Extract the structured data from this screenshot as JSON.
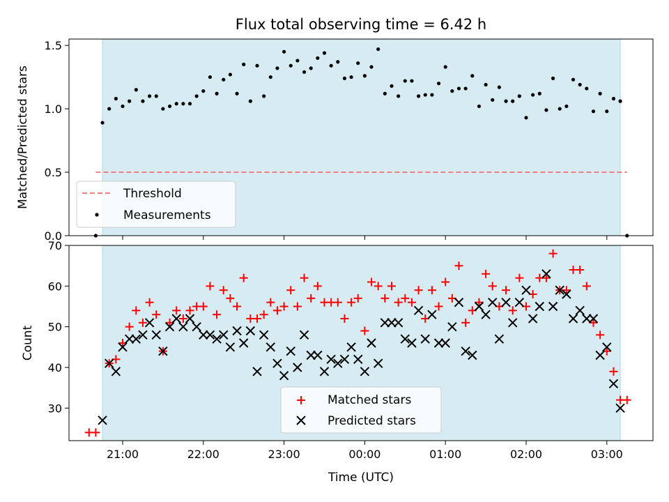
{
  "chart_data": [
    {
      "type": "scatter",
      "title": "Flux total observing time = 6.42 h",
      "ylabel": "Matched/Predicted stars",
      "ylim": [
        0,
        1.55
      ],
      "yticks": [
        "0.0",
        "0.5",
        "1.0",
        "1.5"
      ],
      "xticks": [
        "21:00",
        "22:00",
        "23:00",
        "00:00",
        "01:00",
        "02:00",
        "03:00"
      ],
      "shaded_span": [
        "20:45",
        "03:10"
      ],
      "shade_color": "#add8e6",
      "threshold": {
        "name": "Threshold",
        "value": 0.5,
        "color": "#f08080"
      },
      "series": [
        {
          "name": "Measurements",
          "marker": "dot",
          "color": "#000000",
          "x": [
            "20:40",
            "20:45",
            "20:50",
            "20:55",
            "21:00",
            "21:05",
            "21:10",
            "21:15",
            "21:20",
            "21:25",
            "21:30",
            "21:35",
            "21:40",
            "21:45",
            "21:50",
            "21:55",
            "22:00",
            "22:05",
            "22:10",
            "22:15",
            "22:20",
            "22:25",
            "22:30",
            "22:35",
            "22:40",
            "22:45",
            "22:50",
            "22:55",
            "23:00",
            "23:05",
            "23:10",
            "23:15",
            "23:20",
            "23:25",
            "23:30",
            "23:35",
            "23:40",
            "23:45",
            "23:50",
            "23:55",
            "00:00",
            "00:05",
            "00:10",
            "00:15",
            "00:20",
            "00:25",
            "00:30",
            "00:35",
            "00:40",
            "00:45",
            "00:50",
            "00:55",
            "01:00",
            "01:05",
            "01:10",
            "01:15",
            "01:20",
            "01:25",
            "01:30",
            "01:35",
            "01:40",
            "01:45",
            "01:50",
            "01:55",
            "02:00",
            "02:05",
            "02:10",
            "02:15",
            "02:20",
            "02:25",
            "02:30",
            "02:35",
            "02:40",
            "02:45",
            "02:50",
            "02:55",
            "03:00",
            "03:05",
            "03:10",
            "03:15"
          ],
          "y": [
            0.0,
            0.89,
            1.0,
            1.08,
            1.02,
            1.06,
            1.15,
            1.06,
            1.1,
            1.1,
            1.0,
            1.02,
            1.04,
            1.04,
            1.04,
            1.1,
            1.14,
            1.25,
            1.12,
            1.23,
            1.27,
            1.12,
            1.35,
            1.06,
            1.34,
            1.1,
            1.25,
            1.32,
            1.45,
            1.34,
            1.38,
            1.29,
            1.32,
            1.4,
            1.44,
            1.34,
            1.37,
            1.24,
            1.25,
            1.36,
            1.26,
            1.33,
            1.47,
            1.12,
            1.18,
            1.1,
            1.22,
            1.22,
            1.1,
            1.11,
            1.11,
            1.2,
            1.33,
            1.14,
            1.16,
            1.16,
            1.26,
            1.02,
            1.19,
            1.07,
            1.17,
            1.06,
            1.06,
            1.1,
            0.93,
            1.11,
            1.12,
            0.99,
            1.24,
            1.0,
            1.02,
            1.23,
            1.19,
            1.16,
            0.98,
            1.12,
            0.98,
            1.08,
            1.06,
            0.0
          ]
        }
      ],
      "legend": {
        "placement": "lower-left",
        "entries": [
          "Threshold",
          "Measurements"
        ]
      }
    },
    {
      "type": "scatter",
      "xlabel": "Time (UTC)",
      "ylabel": "Count",
      "ylim": [
        22,
        70
      ],
      "yticks": [
        "30",
        "40",
        "50",
        "60",
        "70"
      ],
      "xticks": [
        "21:00",
        "22:00",
        "23:00",
        "00:00",
        "01:00",
        "02:00",
        "03:00"
      ],
      "shaded_span": [
        "20:45",
        "03:10"
      ],
      "shade_color": "#add8e6",
      "series": [
        {
          "name": "Matched stars",
          "marker": "plus",
          "color": "#ff0000",
          "x": [
            "20:35",
            "20:40",
            "20:50",
            "20:55",
            "21:00",
            "21:05",
            "21:10",
            "21:15",
            "21:20",
            "21:25",
            "21:30",
            "21:35",
            "21:40",
            "21:45",
            "21:50",
            "21:55",
            "22:00",
            "22:05",
            "22:10",
            "22:15",
            "22:20",
            "22:25",
            "22:30",
            "22:35",
            "22:40",
            "22:45",
            "22:50",
            "22:55",
            "23:00",
            "23:05",
            "23:10",
            "23:15",
            "23:20",
            "23:25",
            "23:30",
            "23:35",
            "23:40",
            "23:45",
            "23:50",
            "23:55",
            "00:00",
            "00:05",
            "00:10",
            "00:15",
            "00:20",
            "00:25",
            "00:30",
            "00:35",
            "00:40",
            "00:45",
            "00:50",
            "00:55",
            "01:00",
            "01:05",
            "01:10",
            "01:15",
            "01:20",
            "01:25",
            "01:30",
            "01:35",
            "01:40",
            "01:45",
            "01:50",
            "01:55",
            "02:00",
            "02:05",
            "02:10",
            "02:15",
            "02:20",
            "02:25",
            "02:30",
            "02:35",
            "02:40",
            "02:45",
            "02:50",
            "02:55",
            "03:00",
            "03:05",
            "03:10",
            "03:15"
          ],
          "y": [
            24,
            24,
            41,
            42,
            46,
            50,
            54,
            51,
            56,
            53,
            44,
            51,
            54,
            52,
            54,
            55,
            55,
            60,
            53,
            59,
            57,
            55,
            62,
            52,
            52,
            53,
            56,
            54,
            55,
            59,
            55,
            62,
            57,
            60,
            56,
            56,
            56,
            52,
            56,
            57,
            49,
            61,
            60,
            57,
            60,
            56,
            57,
            56,
            59,
            52,
            59,
            55,
            61,
            57,
            65,
            51,
            54,
            56,
            63,
            60,
            55,
            59,
            54,
            62,
            55,
            58,
            62,
            62,
            68,
            59,
            59,
            64,
            64,
            60,
            51,
            48,
            44,
            39,
            32,
            32
          ]
        },
        {
          "name": "Predicted stars",
          "marker": "x",
          "color": "#000000",
          "x": [
            "20:45",
            "20:50",
            "20:55",
            "21:00",
            "21:05",
            "21:10",
            "21:15",
            "21:20",
            "21:25",
            "21:30",
            "21:35",
            "21:40",
            "21:45",
            "21:50",
            "21:55",
            "22:00",
            "22:05",
            "22:10",
            "22:15",
            "22:20",
            "22:25",
            "22:30",
            "22:35",
            "22:40",
            "22:45",
            "22:50",
            "22:55",
            "23:00",
            "23:05",
            "23:10",
            "23:15",
            "23:20",
            "23:25",
            "23:30",
            "23:35",
            "23:40",
            "23:45",
            "23:50",
            "23:55",
            "00:00",
            "00:05",
            "00:10",
            "00:15",
            "00:20",
            "00:25",
            "00:30",
            "00:35",
            "00:40",
            "00:45",
            "00:50",
            "00:55",
            "01:00",
            "01:05",
            "01:10",
            "01:15",
            "01:20",
            "01:25",
            "01:30",
            "01:35",
            "01:40",
            "01:45",
            "01:50",
            "01:55",
            "02:00",
            "02:05",
            "02:10",
            "02:15",
            "02:20",
            "02:25",
            "02:30",
            "02:35",
            "02:40",
            "02:45",
            "02:50",
            "02:55",
            "03:00",
            "03:05",
            "03:10"
          ],
          "y": [
            27,
            41,
            39,
            45,
            47,
            47,
            48,
            51,
            48,
            44,
            50,
            52,
            50,
            52,
            50,
            48,
            48,
            47,
            48,
            45,
            49,
            46,
            49,
            39,
            48,
            45,
            41,
            38,
            44,
            40,
            48,
            43,
            43,
            39,
            42,
            41,
            42,
            45,
            42,
            39,
            46,
            41,
            51,
            51,
            51,
            47,
            46,
            54,
            47,
            53,
            46,
            46,
            50,
            56,
            44,
            43,
            55,
            53,
            56,
            47,
            56,
            51,
            56,
            59,
            52,
            55,
            63,
            55,
            59,
            58,
            52,
            54,
            52,
            52,
            43,
            45,
            36,
            30
          ]
        }
      ],
      "legend": {
        "placement": "lower-center",
        "entries": [
          "Matched stars",
          "Predicted stars"
        ]
      }
    }
  ]
}
